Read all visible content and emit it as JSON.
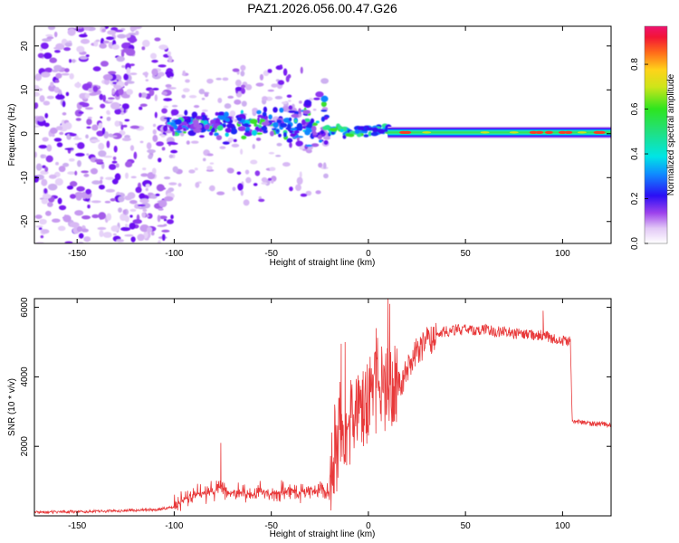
{
  "chart_data": [
    {
      "type": "heatmap",
      "title": "PAZ1.2026.056.00.47.G26",
      "xlabel": "Height of straight line (km)",
      "ylabel": "Frequency (Hz)",
      "xlim": [
        -172,
        125
      ],
      "ylim": [
        -25,
        24.5
      ],
      "xticks": [
        -150,
        -100,
        -50,
        0,
        50,
        100
      ],
      "yticks": [
        -20,
        -10,
        0,
        10,
        20
      ],
      "description_values": {
        "noise_region_km": [
          -172,
          -100
        ],
        "scattered_signal_km": [
          -100,
          -20
        ],
        "converging_tail_km": [
          -20,
          10
        ],
        "steady_tone_km": [
          10,
          125
        ],
        "steady_tone_frequency_hz": 0.3
      },
      "colorbar": {
        "label": "Normalized spectral amplitude",
        "range": [
          0,
          0.97
        ],
        "ticks": [
          "0.0",
          "0.2",
          "0.4",
          "0.6",
          "0.8"
        ],
        "tick_values": [
          0,
          0.2,
          0.4,
          0.6,
          0.8
        ]
      }
    },
    {
      "type": "line",
      "xlabel": "Height of straight line (km)",
      "ylabel": "SNR (10 * v/v)",
      "xlim": [
        -172,
        125
      ],
      "ylim": [
        0,
        6250
      ],
      "xticks": [
        -150,
        -100,
        -50,
        0,
        50,
        100
      ],
      "yticks": [
        2000,
        4000,
        6000
      ],
      "color": "#e8393a",
      "series": [
        {
          "name": "SNR",
          "x": [
            -172,
            -160,
            -150,
            -140,
            -130,
            -120,
            -110,
            -100,
            -95,
            -90,
            -85,
            -80,
            -76,
            -72,
            -65,
            -60,
            -55,
            -50,
            -45,
            -40,
            -35,
            -30,
            -25,
            -20,
            -18,
            -16,
            -14,
            -12,
            -10,
            -8,
            -5,
            -2,
            0,
            3,
            6,
            9,
            12,
            15,
            20,
            25,
            30,
            35,
            40,
            45,
            50,
            55,
            60,
            65,
            70,
            75,
            80,
            85,
            90,
            95,
            100,
            104,
            105,
            106,
            110,
            115,
            120,
            125
          ],
          "y": [
            100,
            110,
            120,
            130,
            140,
            160,
            180,
            250,
            450,
            650,
            650,
            700,
            850,
            650,
            700,
            600,
            700,
            650,
            700,
            750,
            700,
            700,
            750,
            700,
            1500,
            1900,
            2700,
            2200,
            2400,
            2900,
            3100,
            3200,
            3500,
            3600,
            3800,
            3800,
            3750,
            3700,
            4200,
            4700,
            5000,
            5200,
            5300,
            5350,
            5350,
            5350,
            5350,
            5300,
            5300,
            5250,
            5250,
            5200,
            5200,
            5100,
            5050,
            5000,
            2700,
            2700,
            2700,
            2650,
            2650,
            2600
          ]
        }
      ]
    }
  ]
}
